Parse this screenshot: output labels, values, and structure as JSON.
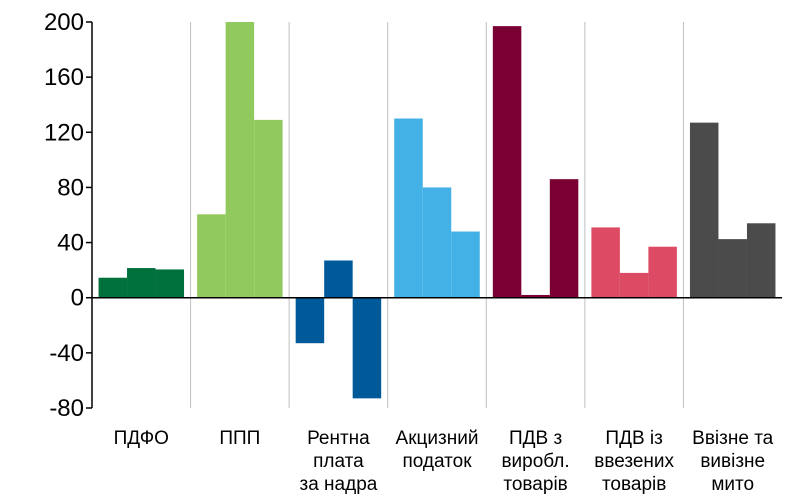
{
  "chart_data": {
    "type": "bar",
    "title": "",
    "xlabel": "",
    "ylabel": "",
    "ylim": [
      -80,
      200
    ],
    "yticks": [
      200,
      160,
      120,
      80,
      40,
      0,
      -40,
      -80
    ],
    "grid": "vertical-between-categories",
    "legend": "none",
    "categories": [
      {
        "lines": [
          "ПДФО"
        ],
        "color": "#00703C",
        "values": [
          14.5,
          21.5,
          20.5
        ]
      },
      {
        "lines": [
          "ППП"
        ],
        "color": "#92C95F",
        "values": [
          60.5,
          200,
          129
        ]
      },
      {
        "lines": [
          "Рентна",
          "плата",
          "за надра"
        ],
        "color": "#005A9A",
        "values": [
          -33,
          27,
          -73
        ]
      },
      {
        "lines": [
          "Акцизний",
          "податок"
        ],
        "color": "#43B0E6",
        "values": [
          130,
          80,
          48
        ]
      },
      {
        "lines": [
          "ПДВ з",
          "виробл.",
          "товарів"
        ],
        "color": "#7A0033",
        "values": [
          197,
          2,
          86
        ]
      },
      {
        "lines": [
          "ПДВ із",
          "ввезених",
          "товарів"
        ],
        "color": "#DD4A63",
        "values": [
          51,
          18,
          37
        ]
      },
      {
        "lines": [
          "Ввізне та",
          "вивізне",
          "мито"
        ],
        "color": "#4B4B4B",
        "values": [
          127,
          42.5,
          54
        ]
      }
    ]
  }
}
